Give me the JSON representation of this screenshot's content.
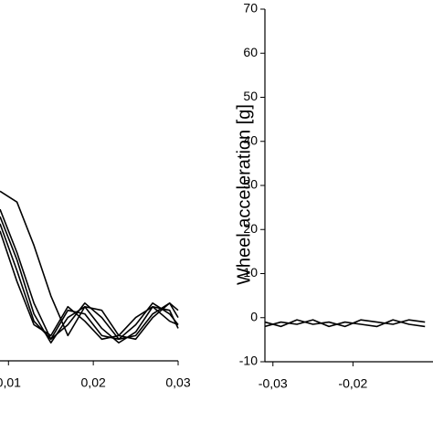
{
  "chart_data": [
    {
      "type": "line",
      "x": [
        0.009,
        0.011,
        0.013,
        0.015,
        0.017,
        0.019,
        0.021,
        0.023,
        0.025,
        0.027,
        0.029,
        0.03
      ],
      "xlim": [
        0.009,
        0.03
      ],
      "xticks": [
        {
          "value": 0.01,
          "label": "0,01"
        },
        {
          "value": 0.02,
          "label": "0,02"
        },
        {
          "value": 0.03,
          "label": "0,03"
        }
      ],
      "ylim": [
        0,
        100
      ],
      "series": [
        {
          "color": "#000000",
          "values": [
            47,
            44,
            32,
            18,
            7,
            15,
            14,
            7,
            6,
            12,
            16,
            14
          ]
        },
        {
          "color": "#000000",
          "values": [
            42,
            30,
            16,
            6,
            10,
            16,
            12,
            6,
            7,
            13,
            16,
            12
          ]
        },
        {
          "color": "#000000",
          "values": [
            40,
            28,
            13,
            5,
            12,
            15,
            9,
            5,
            8,
            15,
            14,
            9
          ]
        },
        {
          "color": "#000000",
          "values": [
            38,
            25,
            11,
            6,
            14,
            13,
            7,
            6,
            10,
            16,
            13,
            10
          ]
        },
        {
          "color": "#000000",
          "values": [
            36,
            22,
            10,
            7,
            15,
            11,
            6,
            7,
            12,
            15,
            11,
            10
          ]
        }
      ]
    },
    {
      "type": "line",
      "ylabel": "Wheel acceleration [g]",
      "x": [
        -0.031,
        -0.029,
        -0.027,
        -0.025,
        -0.023,
        -0.021,
        -0.019,
        -0.017,
        -0.015,
        -0.013,
        -0.011
      ],
      "xlim": [
        -0.031,
        -0.01
      ],
      "xticks": [
        {
          "value": -0.03,
          "label": "-0,03"
        },
        {
          "value": -0.02,
          "label": "-0,02"
        }
      ],
      "ylim": [
        -10,
        70
      ],
      "yticks": [
        -10,
        0,
        10,
        20,
        30,
        40,
        50,
        60,
        70
      ],
      "series": [
        {
          "color": "#000000",
          "values": [
            -1,
            -2,
            -0.5,
            -1.5,
            -1,
            -2,
            -0.5,
            -1,
            -1.5,
            -0.5,
            -1
          ]
        },
        {
          "color": "#000000",
          "values": [
            -2,
            -1,
            -1.5,
            -0.5,
            -2,
            -1,
            -1.5,
            -2,
            -0.5,
            -1.5,
            -2
          ]
        }
      ]
    }
  ]
}
